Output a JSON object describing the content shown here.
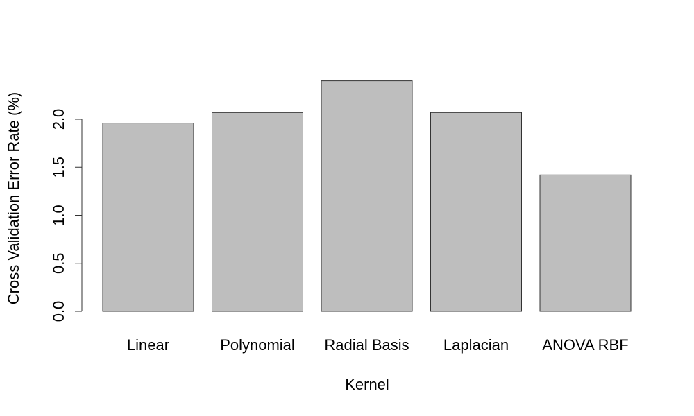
{
  "chart_data": {
    "type": "bar",
    "title": "",
    "xlabel": "Kernel",
    "ylabel": "Cross Validation Error Rate (%)",
    "categories": [
      "Linear",
      "Polynomial",
      "Radial Basis",
      "Laplacian",
      "ANOVA RBF"
    ],
    "values": [
      1.96,
      2.07,
      2.4,
      2.07,
      1.42
    ],
    "ylim": [
      0,
      2.4
    ],
    "yticks": [
      "0.0",
      "0.5",
      "1.0",
      "1.5",
      "2.0"
    ],
    "bar_color": "#bebebe",
    "grid": false,
    "legend": "none"
  }
}
